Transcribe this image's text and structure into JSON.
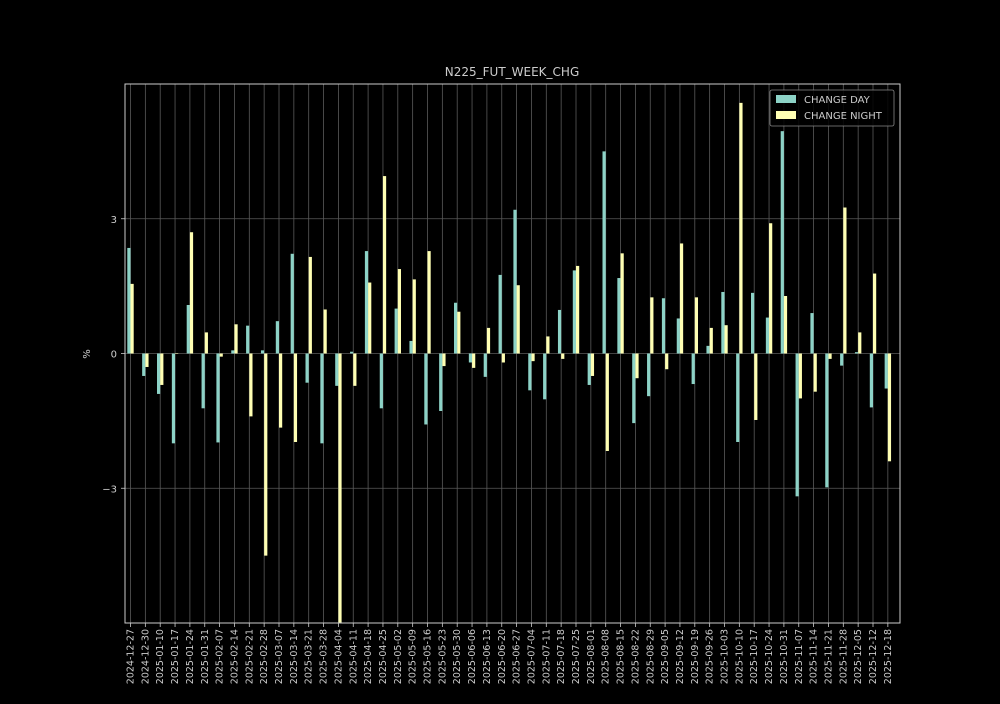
{
  "chart_data": {
    "type": "bar",
    "title": "N225_FUT_WEEK_CHG",
    "xlabel": "",
    "ylabel": "%",
    "ylim": [
      -6.0,
      6.0
    ],
    "yticks": [
      -3,
      0,
      3
    ],
    "ytick_labels": [
      "−3",
      "0",
      "3"
    ],
    "grid": true,
    "legend_position": "top-right",
    "categories": [
      "2024-12-27",
      "2024-12-30",
      "2025-01-10",
      "2025-01-17",
      "2025-01-24",
      "2025-01-31",
      "2025-02-07",
      "2025-02-14",
      "2025-02-21",
      "2025-02-28",
      "2025-03-07",
      "2025-03-14",
      "2025-03-21",
      "2025-03-28",
      "2025-04-04",
      "2025-04-11",
      "2025-04-18",
      "2025-04-25",
      "2025-05-02",
      "2025-05-09",
      "2025-05-16",
      "2025-05-23",
      "2025-05-30",
      "2025-06-06",
      "2025-06-13",
      "2025-06-20",
      "2025-06-27",
      "2025-07-04",
      "2025-07-11",
      "2025-07-18",
      "2025-07-25",
      "2025-08-01",
      "2025-08-08",
      "2025-08-15",
      "2025-08-22",
      "2025-08-29",
      "2025-09-05",
      "2025-09-12",
      "2025-09-19",
      "2025-09-26",
      "2025-10-03",
      "2025-10-10",
      "2025-10-17",
      "2025-10-24",
      "2025-10-31",
      "2025-11-07",
      "2025-11-14",
      "2025-11-21",
      "2025-11-28",
      "2025-12-05",
      "2025-12-12",
      "2025-12-18"
    ],
    "series": [
      {
        "name": "CHANGE DAY",
        "color": "#8dd3c7",
        "values": [
          2.35,
          -0.5,
          -0.9,
          -2.0,
          1.08,
          -1.22,
          -1.98,
          0.07,
          0.62,
          0.07,
          0.72,
          2.22,
          -0.65,
          -2.0,
          -0.72,
          0.04,
          2.28,
          -1.22,
          1.0,
          0.28,
          -1.58,
          -1.28,
          1.13,
          -0.2,
          -0.52,
          1.75,
          3.2,
          -0.82,
          -1.02,
          0.97,
          1.85,
          -0.7,
          4.5,
          1.68,
          -1.55,
          -0.95,
          1.23,
          0.78,
          -0.68,
          0.17,
          1.37,
          -1.97,
          1.35,
          0.8,
          4.95,
          -3.18,
          0.9,
          -2.98,
          -0.27,
          0.03,
          -1.2,
          -0.78
        ]
      },
      {
        "name": "CHANGE NIGHT",
        "color": "#ffffb3",
        "values": [
          1.55,
          -0.3,
          -0.7,
          0.0,
          2.7,
          0.47,
          -0.07,
          0.65,
          -1.4,
          -4.5,
          -1.65,
          -1.97,
          2.15,
          0.98,
          -6.0,
          -0.72,
          1.58,
          3.95,
          1.88,
          1.65,
          2.28,
          -0.28,
          0.93,
          -0.32,
          0.57,
          -0.2,
          1.52,
          -0.17,
          0.38,
          -0.12,
          1.95,
          -0.5,
          -2.17,
          2.23,
          -0.55,
          1.25,
          -0.35,
          2.45,
          1.25,
          0.57,
          0.63,
          5.58,
          -1.48,
          2.9,
          1.28,
          -1.0,
          -0.85,
          -0.12,
          3.25,
          0.47,
          1.78,
          -2.4
        ]
      }
    ]
  }
}
